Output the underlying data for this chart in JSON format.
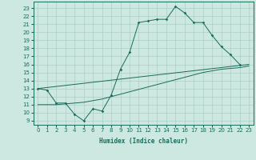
{
  "xlabel": "Humidex (Indice chaleur)",
  "bg_color": "#cce8e0",
  "grid_color": "#aacfc5",
  "line_color": "#1a6b5a",
  "xlim": [
    -0.5,
    23.5
  ],
  "ylim": [
    8.5,
    23.8
  ],
  "yticks": [
    9,
    10,
    11,
    12,
    13,
    14,
    15,
    16,
    17,
    18,
    19,
    20,
    21,
    22,
    23
  ],
  "xticks": [
    0,
    1,
    2,
    3,
    4,
    5,
    6,
    7,
    8,
    9,
    10,
    11,
    12,
    13,
    14,
    15,
    16,
    17,
    18,
    19,
    20,
    21,
    22,
    23
  ],
  "line1_x": [
    0,
    1,
    2,
    3,
    4,
    5,
    6,
    7,
    8,
    9,
    10,
    11,
    12,
    13,
    14,
    15,
    16,
    17,
    18,
    19,
    20,
    21,
    22
  ],
  "line1_y": [
    13,
    12.8,
    11.2,
    11.2,
    9.8,
    9.0,
    10.5,
    10.2,
    12.2,
    15.4,
    17.5,
    21.2,
    21.4,
    21.6,
    21.6,
    23.2,
    22.4,
    21.2,
    21.2,
    19.6,
    18.2,
    17.2,
    16.0
  ],
  "line2_x": [
    0,
    23
  ],
  "line2_y": [
    13,
    16
  ],
  "line3_x": [
    0,
    1,
    2,
    3,
    4,
    5,
    6,
    7,
    8,
    9,
    10,
    11,
    12,
    13,
    14,
    15,
    16,
    17,
    18,
    19,
    20,
    21,
    22,
    23
  ],
  "line3_y": [
    11.0,
    11.0,
    11.0,
    11.1,
    11.2,
    11.3,
    11.5,
    11.7,
    12.0,
    12.3,
    12.6,
    12.9,
    13.2,
    13.5,
    13.8,
    14.1,
    14.4,
    14.7,
    15.0,
    15.2,
    15.4,
    15.5,
    15.6,
    15.8
  ],
  "tick_labelsize": 5,
  "xlabel_fontsize": 5.5
}
